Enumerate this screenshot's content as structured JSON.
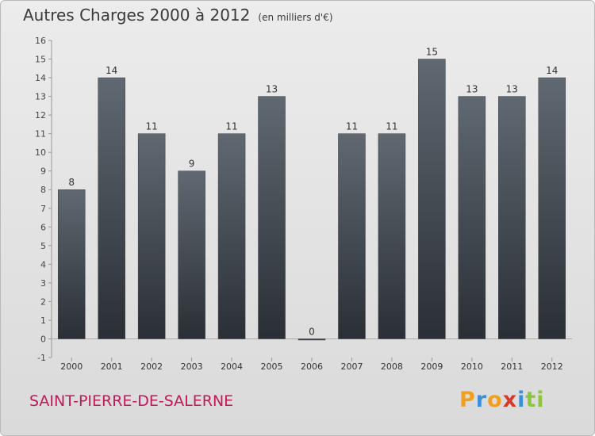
{
  "header": {
    "title": "Autres Charges 2000 à 2012",
    "subtitle": "(en milliers d'€)"
  },
  "footer": {
    "place": "SAINT-PIERRE-DE-SALERNE",
    "logo": "Proxiti"
  },
  "colors": {
    "bar_top": "#606871",
    "bar_bottom": "#2a2f35",
    "place_text": "#c2185b",
    "logo_letters": [
      "#f0a020",
      "#3b8fd8",
      "#f0a020",
      "#d63a2a",
      "#3b8fd8",
      "#8cc63f",
      "#8cc63f"
    ]
  },
  "chart_data": {
    "type": "bar",
    "categories": [
      "2000",
      "2001",
      "2002",
      "2003",
      "2004",
      "2005",
      "2006",
      "2007",
      "2008",
      "2009",
      "2010",
      "2011",
      "2012"
    ],
    "values": [
      8,
      14,
      11,
      9,
      11,
      13,
      0,
      11,
      11,
      15,
      13,
      13,
      14
    ],
    "title": "Autres Charges 2000 à 2012",
    "xlabel": "",
    "ylabel": "",
    "ylim": [
      -1,
      16
    ],
    "yticks": [
      -1,
      0,
      1,
      2,
      3,
      4,
      5,
      6,
      7,
      8,
      9,
      10,
      11,
      12,
      13,
      14,
      15,
      16
    ],
    "grid": false,
    "legend": "none",
    "data_labels": true
  }
}
